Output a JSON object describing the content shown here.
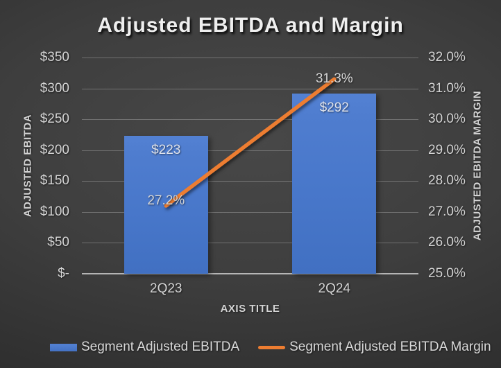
{
  "chart_data": {
    "type": "combo-bar-line",
    "title": "Adjusted EBITDA and Margin",
    "categories": [
      "2Q23",
      "2Q24"
    ],
    "series": [
      {
        "name": "Segment Adjusted EBITDA",
        "type": "bar",
        "axis": "left",
        "values": [
          223,
          292
        ],
        "data_labels": [
          "$223",
          "$292"
        ],
        "color": "#4472C4"
      },
      {
        "name": "Segment Adjusted EBITDA Margin",
        "type": "line",
        "axis": "right",
        "values": [
          27.2,
          31.3
        ],
        "data_labels": [
          "27.2%",
          "31.3%"
        ],
        "color": "#ED7D31"
      }
    ],
    "left_axis": {
      "title": "ADJUSTED EBITDA",
      "min": 0,
      "max": 350,
      "step": 50,
      "tick_labels": [
        "$-",
        "$50",
        "$100",
        "$150",
        "$200",
        "$250",
        "$300",
        "$350"
      ]
    },
    "right_axis": {
      "title": "ADJUSTED EBITDA MARGIN",
      "min": 25.0,
      "max": 32.0,
      "step": 1.0,
      "tick_labels": [
        "25.0%",
        "26.0%",
        "27.0%",
        "28.0%",
        "29.0%",
        "30.0%",
        "31.0%",
        "32.0%"
      ]
    },
    "x_axis": {
      "title": "AXIS TITLE"
    },
    "legend": {
      "position": "bottom",
      "entries": [
        "Segment Adjusted EBITDA",
        "Segment Adjusted EBITDA Margin"
      ]
    },
    "grid": true,
    "colors": {
      "bar": "#4472C4",
      "line": "#ED7D31",
      "background_center": "#484848",
      "background_edge": "#222222",
      "text": "#D4D4D4"
    }
  }
}
